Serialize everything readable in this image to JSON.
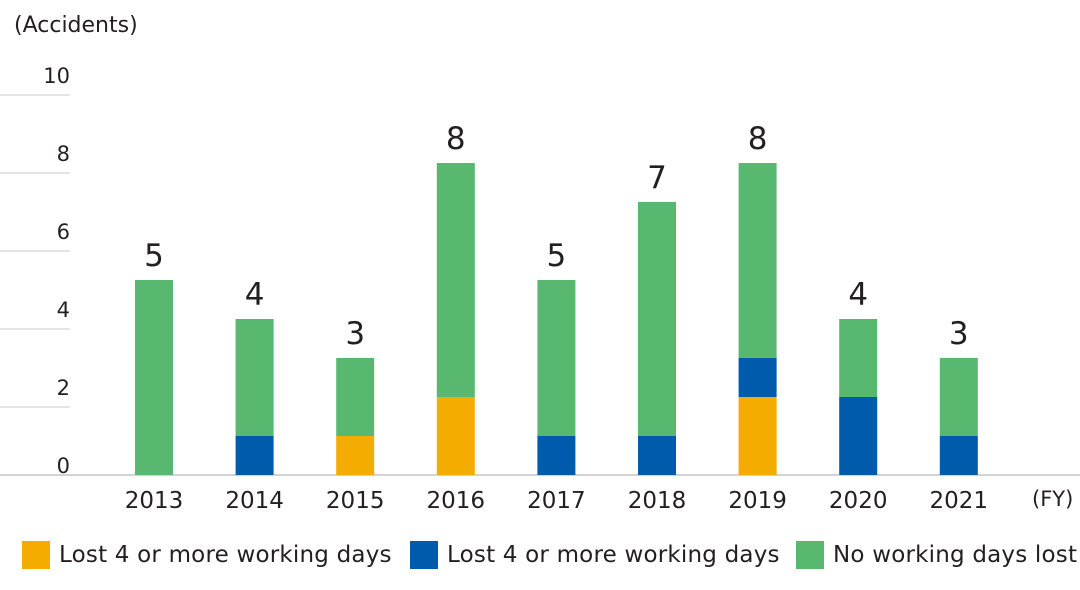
{
  "chart_data": {
    "type": "bar",
    "stacked": true,
    "ylabel": "(Accidents)",
    "xunit": "(FY)",
    "categories": [
      "2013",
      "2014",
      "2015",
      "2016",
      "2017",
      "2018",
      "2019",
      "2020",
      "2021"
    ],
    "ylim": [
      0,
      10
    ],
    "yticks": [
      "0",
      "2",
      "4",
      "6",
      "8",
      "10"
    ],
    "grid": true,
    "legend_position": "bottom",
    "series": [
      {
        "name": "Lost 4 or more working days",
        "color": "#f5ac00",
        "values": [
          0,
          0,
          1,
          2,
          0,
          0,
          2,
          0,
          0
        ]
      },
      {
        "name": "Lost 4 or more working days",
        "color": "#005bac",
        "values": [
          0,
          1,
          0,
          0,
          1,
          1,
          1,
          2,
          1
        ]
      },
      {
        "name": "No working days lost",
        "color": "#58b86f",
        "values": [
          5,
          3,
          2,
          6,
          4,
          6,
          5,
          2,
          2
        ]
      }
    ],
    "totals": [
      "5",
      "4",
      "3",
      "8",
      "5",
      "7",
      "8",
      "4",
      "3"
    ]
  }
}
